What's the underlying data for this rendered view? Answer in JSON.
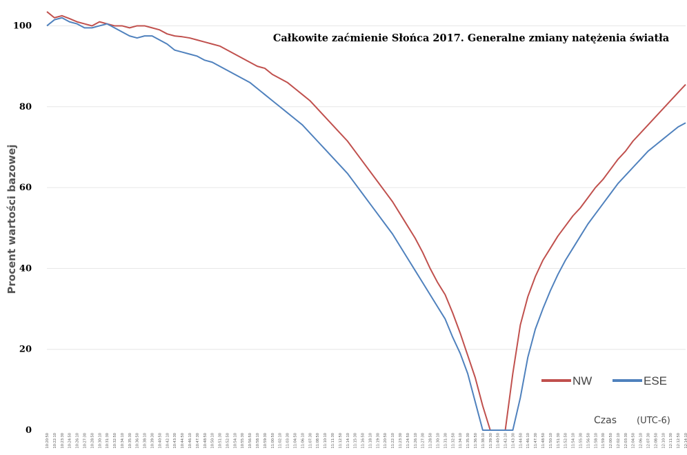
{
  "chart_data": {
    "type": "line",
    "title": "Całkowite zaćmienie Słońca 2017. Generalne zmiany natężenia światła",
    "ylabel": "Procent wartości bazowej",
    "xlabel": "Czas",
    "xlabel_unit": "(UTC-6)",
    "ylim": [
      0,
      104
    ],
    "yticks": [
      0,
      20,
      40,
      60,
      80,
      100
    ],
    "grid": "horizontal",
    "legend_position": "bottom-right",
    "x": [
      "10:20:50",
      "10:22:10",
      "10:23:30",
      "10:24:50",
      "10:26:10",
      "10:27:30",
      "10:28:50",
      "10:30:10",
      "10:31:30",
      "10:32:50",
      "10:34:10",
      "10:35:30",
      "10:36:50",
      "10:38:10",
      "10:39:30",
      "10:40:50",
      "10:42:10",
      "10:43:30",
      "10:44:50",
      "10:46:10",
      "10:47:30",
      "10:48:50",
      "10:50:10",
      "10:51:30",
      "10:52:50",
      "10:54:10",
      "10:55:30",
      "10:56:50",
      "10:58:10",
      "10:59:30",
      "11:00:50",
      "11:02:10",
      "11:03:30",
      "11:04:50",
      "11:06:10",
      "11:07:30",
      "11:08:50",
      "11:10:10",
      "11:11:30",
      "11:12:50",
      "11:14:10",
      "11:15:30",
      "11:16:50",
      "11:18:10",
      "11:19:30",
      "11:20:50",
      "11:22:10",
      "11:23:30",
      "11:24:50",
      "11:26:10",
      "11:27:30",
      "11:28:50",
      "11:30:10",
      "11:31:30",
      "11:32:50",
      "11:34:10",
      "11:35:30",
      "11:36:50",
      "11:38:10",
      "11:39:30",
      "11:40:50",
      "11:42:10",
      "11:43:30",
      "11:44:50",
      "11:46:10",
      "11:47:30",
      "11:48:50",
      "11:50:10",
      "11:51:30",
      "11:52:50",
      "11:54:10",
      "11:55:30",
      "11:56:50",
      "11:58:10",
      "11:59:30",
      "12:00:50",
      "12:02:10",
      "12:03:30",
      "12:04:50",
      "12:06:10",
      "12:07:30",
      "12:08:50",
      "12:10:10",
      "12:11:30",
      "12:12:50",
      "12:14:10"
    ],
    "series": [
      {
        "name": "NW",
        "color": "#c0504d",
        "values": [
          103.5,
          102.0,
          102.5,
          101.8,
          101.0,
          100.5,
          100.0,
          101.0,
          100.5,
          100.0,
          100.0,
          99.5,
          100.0,
          100.0,
          99.5,
          99.0,
          98.0,
          97.5,
          97.3,
          97.0,
          96.5,
          96.0,
          95.5,
          95.0,
          94.0,
          93.0,
          92.0,
          91.0,
          90.0,
          89.5,
          88.0,
          87.0,
          86.0,
          84.5,
          83.0,
          81.5,
          79.5,
          77.5,
          75.5,
          73.5,
          71.5,
          69.0,
          66.5,
          64.0,
          61.5,
          59.0,
          56.5,
          53.5,
          50.5,
          47.5,
          44.0,
          40.0,
          36.5,
          33.5,
          29.0,
          24.0,
          18.5,
          13.0,
          6.0,
          0.0,
          0.0,
          0.0,
          14.0,
          26.0,
          33.0,
          38.0,
          42.0,
          45.0,
          48.0,
          50.5,
          53.0,
          55.0,
          57.5,
          60.0,
          62.0,
          64.5,
          67.0,
          69.0,
          71.5,
          73.5,
          75.5,
          77.5,
          79.5,
          81.5,
          83.5,
          85.5
        ]
      },
      {
        "name": "ESE",
        "color": "#4f81bd",
        "values": [
          100.0,
          101.5,
          102.0,
          101.0,
          100.5,
          99.5,
          99.5,
          100.0,
          100.5,
          99.5,
          98.5,
          97.5,
          97.0,
          97.5,
          97.5,
          96.5,
          95.5,
          94.0,
          93.5,
          93.0,
          92.5,
          91.5,
          91.0,
          90.0,
          89.0,
          88.0,
          87.0,
          86.0,
          84.5,
          83.0,
          81.5,
          80.0,
          78.5,
          77.0,
          75.5,
          73.5,
          71.5,
          69.5,
          67.5,
          65.5,
          63.5,
          61.0,
          58.5,
          56.0,
          53.5,
          51.0,
          48.5,
          45.5,
          42.5,
          39.5,
          36.5,
          33.5,
          30.5,
          27.5,
          23.0,
          19.0,
          14.0,
          7.0,
          0.0,
          0.0,
          0.0,
          0.0,
          0.0,
          8.0,
          18.0,
          25.0,
          30.0,
          34.5,
          38.5,
          42.0,
          45.0,
          48.0,
          51.0,
          53.5,
          56.0,
          58.5,
          61.0,
          63.0,
          65.0,
          67.0,
          69.0,
          70.5,
          72.0,
          73.5,
          75.0,
          76.0
        ]
      }
    ]
  }
}
